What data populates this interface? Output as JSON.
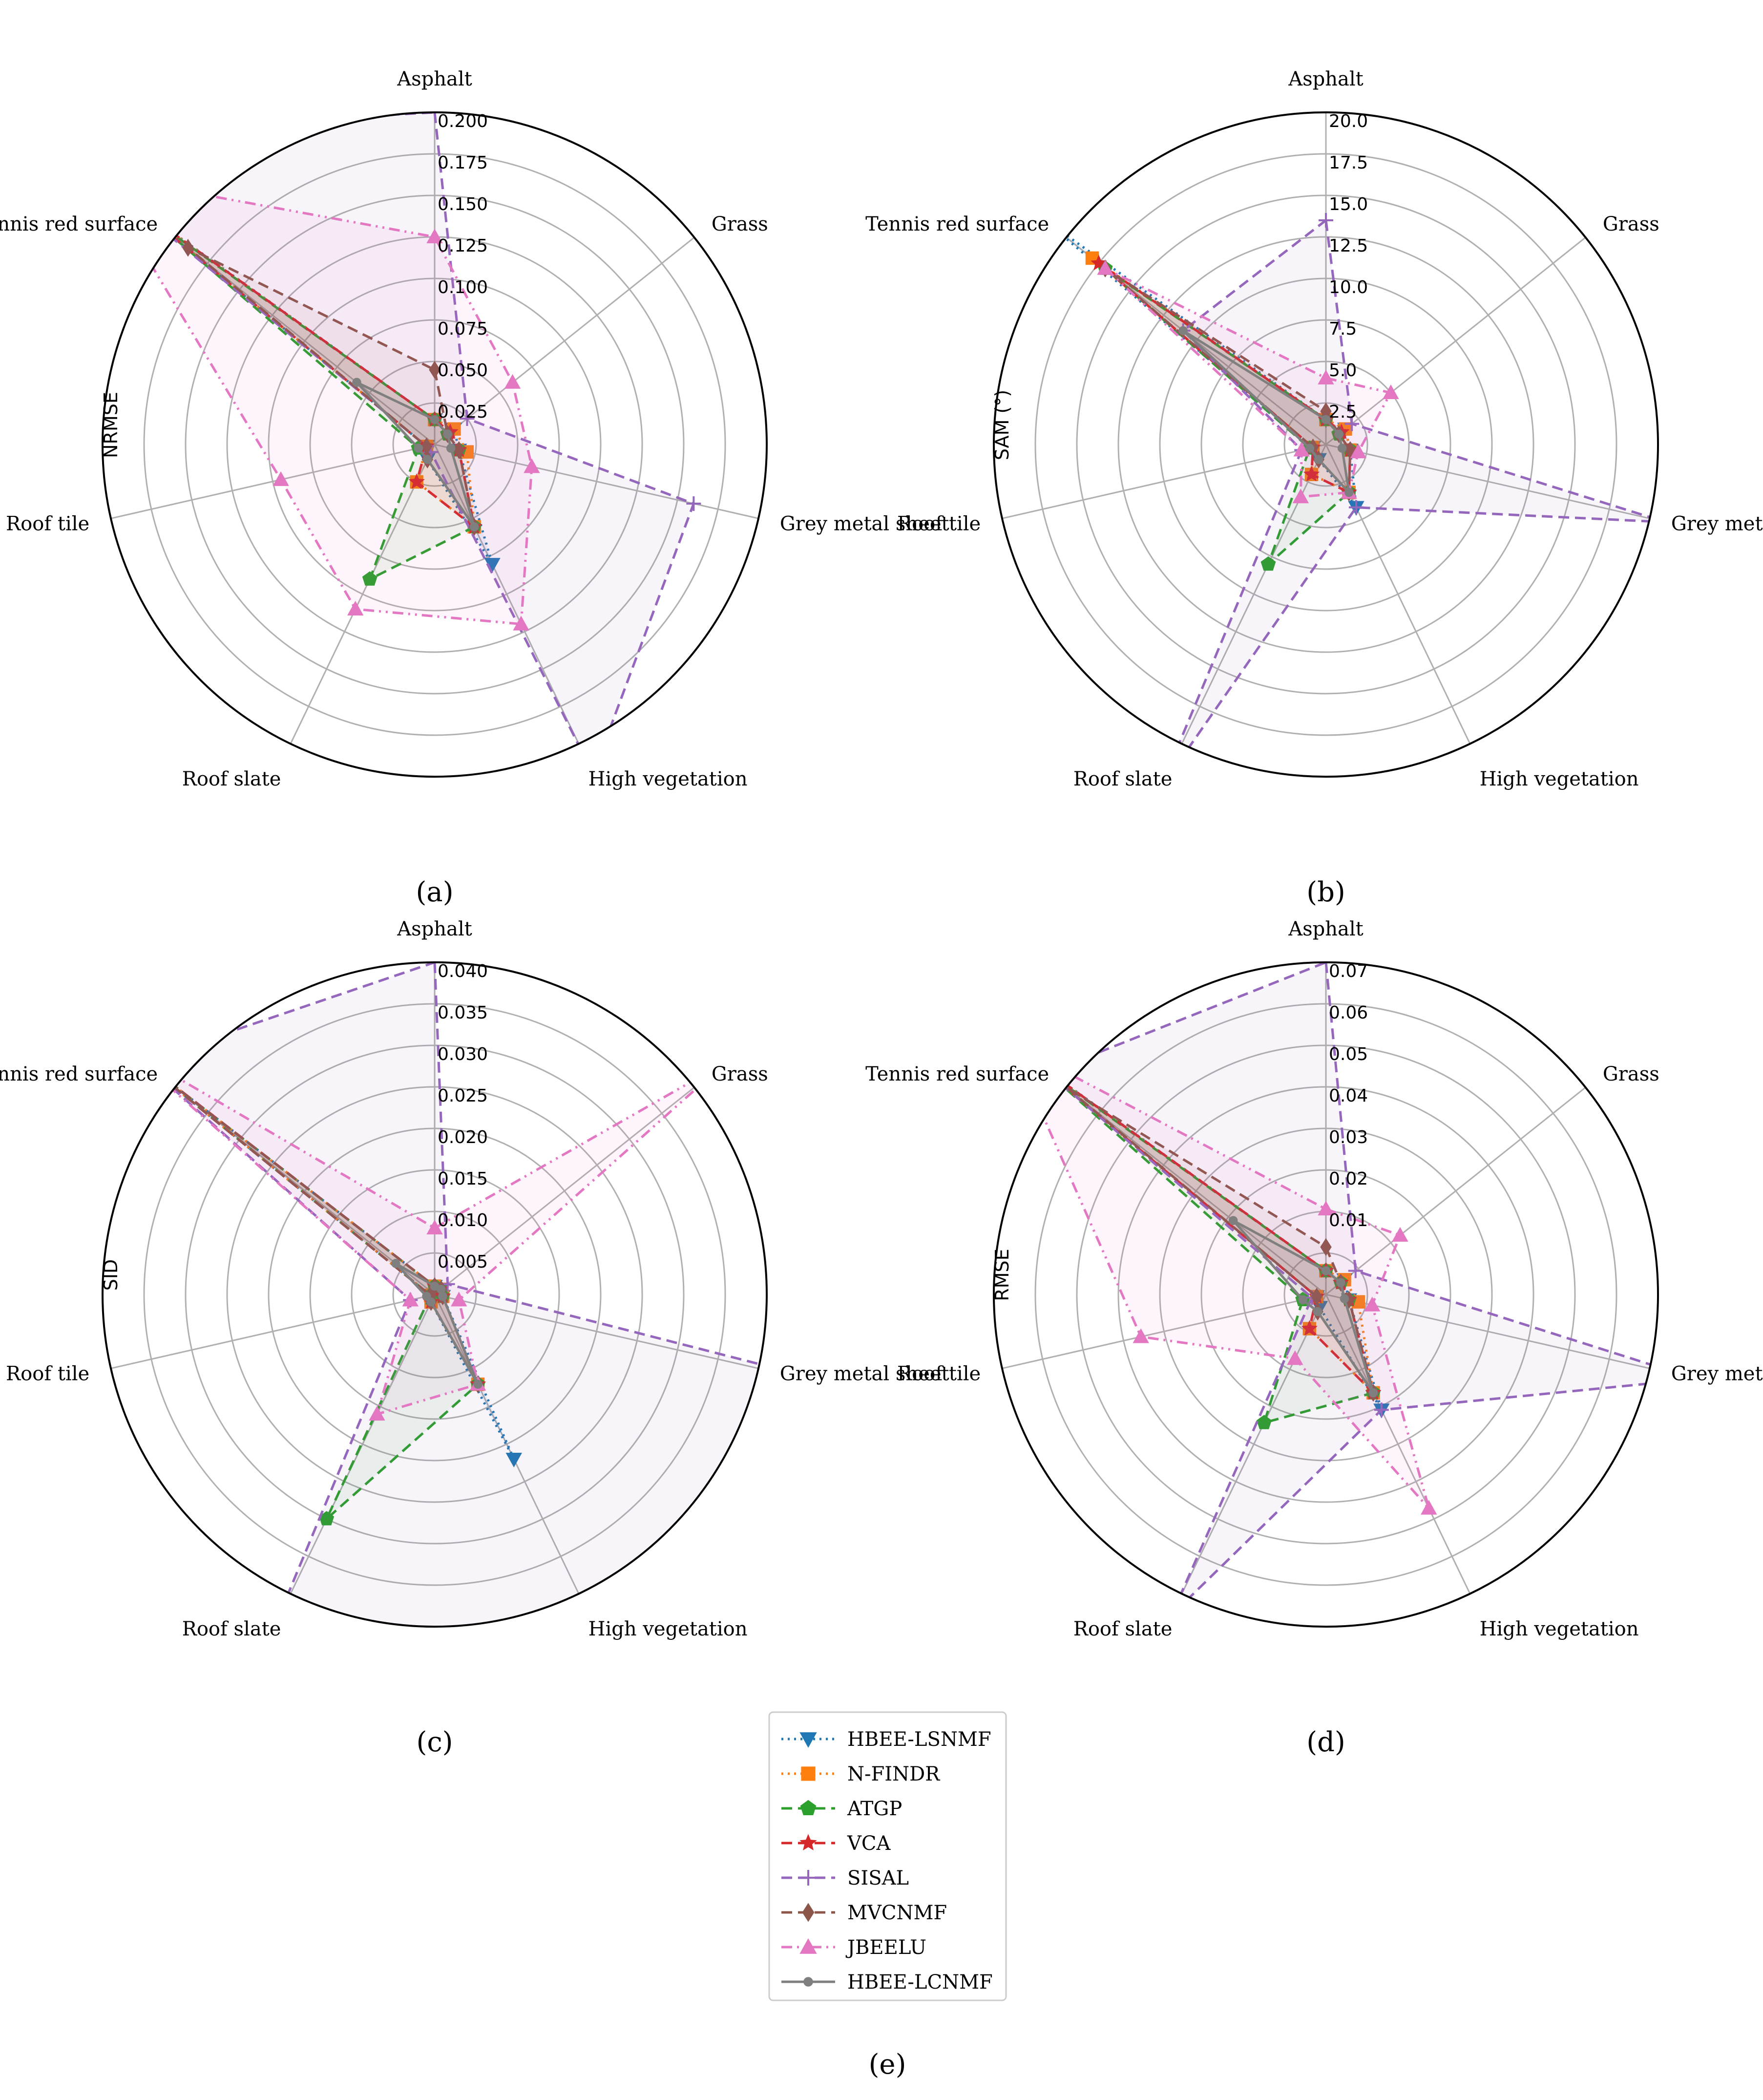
{
  "figure": {
    "legend": {
      "entries": [
        {
          "name": "HBEE-LSNMF",
          "color": "#1f77b4",
          "dash": "dotted",
          "marker": "triangle-down"
        },
        {
          "name": "N-FINDR",
          "color": "#ff7f0e",
          "dash": "dotted",
          "marker": "square"
        },
        {
          "name": "ATGP",
          "color": "#2ca02c",
          "dash": "dashed",
          "marker": "pentagon"
        },
        {
          "name": "VCA",
          "color": "#d62728",
          "dash": "dashed",
          "marker": "star"
        },
        {
          "name": "SISAL",
          "color": "#9467bd",
          "dash": "dashed",
          "marker": "plus"
        },
        {
          "name": "MVCNMF",
          "color": "#8c564b",
          "dash": "dashed",
          "marker": "diamond"
        },
        {
          "name": "JBEELU",
          "color": "#e377c2",
          "dash": "dashdot",
          "marker": "triangle-up"
        },
        {
          "name": "HBEE-LCNMF",
          "color": "#7f7f7f",
          "dash": "solid",
          "marker": "circle"
        }
      ],
      "caption": "(e)"
    }
  },
  "chart_data": [
    {
      "type": "radar",
      "caption": "(a)",
      "ylabel": "NRMSE",
      "categories": [
        "Asphalt",
        "Grass",
        "Grey metal sheet",
        "High vegetation",
        "Roof slate",
        "Roof tile",
        "Tennis red surface"
      ],
      "ylim": [
        0,
        0.2
      ],
      "ticks": [
        "0.025",
        "0.050",
        "0.075",
        "0.100",
        "0.125",
        "0.150",
        "0.175",
        "0.200"
      ],
      "series": [
        {
          "name": "HBEE-LSNMF",
          "values": [
            0.015,
            0.015,
            0.015,
            0.08,
            0.01,
            0.005,
            0.23
          ]
        },
        {
          "name": "N-FINDR",
          "values": [
            0.015,
            0.015,
            0.02,
            0.055,
            0.025,
            0.005,
            0.225
          ]
        },
        {
          "name": "ATGP",
          "values": [
            0.015,
            0.01,
            0.015,
            0.055,
            0.09,
            0.01,
            0.215
          ]
        },
        {
          "name": "VCA",
          "values": [
            0.015,
            0.012,
            0.015,
            0.055,
            0.025,
            0.005,
            0.225
          ]
        },
        {
          "name": "SISAL",
          "values": [
            0.2,
            0.025,
            0.16,
            0.22,
            0.005,
            0.005,
            0.3
          ]
        },
        {
          "name": "MVCNMF",
          "values": [
            0.045,
            0.01,
            0.015,
            0.055,
            0.01,
            0.005,
            0.19
          ]
        },
        {
          "name": "JBEELU",
          "values": [
            0.125,
            0.06,
            0.06,
            0.12,
            0.11,
            0.095,
            0.26
          ]
        },
        {
          "name": "HBEE-LCNMF",
          "values": [
            0.015,
            0.01,
            0.01,
            0.055,
            0.01,
            0.01,
            0.06
          ]
        }
      ]
    },
    {
      "type": "radar",
      "caption": "(b)",
      "ylabel": "SAM (°)",
      "categories": [
        "Asphalt",
        "Grass",
        "Grey metal sheet",
        "High vegetation",
        "Roof slate",
        "Roof tile",
        "Tennis red surface"
      ],
      "ylim": [
        0,
        20
      ],
      "ticks": [
        "2.5",
        "5.0",
        "7.5",
        "10.0",
        "12.5",
        "15.0",
        "17.5",
        "20.0"
      ],
      "series": [
        {
          "name": "HBEE-LSNMF",
          "values": [
            1.5,
            1.5,
            1.5,
            4.2,
            1.0,
            0.8,
            22.0
          ]
        },
        {
          "name": "N-FINDR",
          "values": [
            1.5,
            1.5,
            1.5,
            3.2,
            2.0,
            0.8,
            18.0
          ]
        },
        {
          "name": "ATGP",
          "values": [
            1.5,
            1.0,
            1.5,
            3.2,
            8.0,
            1.0,
            17.0
          ]
        },
        {
          "name": "VCA",
          "values": [
            1.5,
            1.2,
            1.5,
            3.2,
            2.0,
            0.8,
            17.5
          ]
        },
        {
          "name": "SISAL",
          "values": [
            13.5,
            2.0,
            21.0,
            4.2,
            23.0,
            1.5,
            11.0
          ]
        },
        {
          "name": "MVCNMF",
          "values": [
            2.0,
            1.0,
            1.5,
            3.2,
            1.0,
            0.8,
            17.0
          ]
        },
        {
          "name": "JBEELU",
          "values": [
            4.0,
            5.0,
            2.0,
            3.2,
            3.5,
            1.5,
            17.0
          ]
        },
        {
          "name": "HBEE-LCNMF",
          "values": [
            1.5,
            1.0,
            1.0,
            3.2,
            1.0,
            1.0,
            11.0
          ]
        }
      ]
    },
    {
      "type": "radar",
      "caption": "(c)",
      "ylabel": "SID",
      "categories": [
        "Asphalt",
        "Grass",
        "Grey metal sheet",
        "High vegetation",
        "Roof slate",
        "Roof tile",
        "Tennis red surface"
      ],
      "ylim": [
        0,
        0.04
      ],
      "ticks": [
        "0.005",
        "0.010",
        "0.015",
        "0.020",
        "0.025",
        "0.030",
        "0.035",
        "0.040"
      ],
      "series": [
        {
          "name": "HBEE-LSNMF",
          "values": [
            0.001,
            0.001,
            0.001,
            0.022,
            0.001,
            0.0005,
            0.046
          ]
        },
        {
          "name": "N-FINDR",
          "values": [
            0.001,
            0.001,
            0.001,
            0.012,
            0.001,
            0.0005,
            0.045
          ]
        },
        {
          "name": "ATGP",
          "values": [
            0.001,
            0.001,
            0.001,
            0.012,
            0.03,
            0.0005,
            0.045
          ]
        },
        {
          "name": "VCA",
          "values": [
            0.001,
            0.001,
            0.001,
            0.012,
            0.001,
            0.0005,
            0.046
          ]
        },
        {
          "name": "SISAL",
          "values": [
            0.04,
            0.002,
            0.06,
            0.05,
            0.045,
            0.003,
            0.045
          ]
        },
        {
          "name": "MVCNMF",
          "values": [
            0.001,
            0.001,
            0.001,
            0.012,
            0.001,
            0.0005,
            0.044
          ]
        },
        {
          "name": "JBEELU",
          "values": [
            0.008,
            0.045,
            0.003,
            0.012,
            0.016,
            0.003,
            0.048
          ]
        },
        {
          "name": "HBEE-LCNMF",
          "values": [
            0.001,
            0.001,
            0.001,
            0.012,
            0.001,
            0.001,
            0.006
          ]
        }
      ]
    },
    {
      "type": "radar",
      "caption": "(d)",
      "ylabel": "RMSE",
      "categories": [
        "Asphalt",
        "Grass",
        "Grey metal sheet",
        "High vegetation",
        "Roof slate",
        "Roof tile",
        "Tennis red surface"
      ],
      "ylim": [
        0,
        0.07
      ],
      "ticks": [
        "0.01",
        "0.02",
        "0.03",
        "0.04",
        "0.05",
        "0.06",
        "0.07"
      ],
      "series": [
        {
          "name": "HBEE-LSNMF",
          "values": [
            0.005,
            0.005,
            0.005,
            0.027,
            0.003,
            0.002,
            0.08
          ]
        },
        {
          "name": "N-FINDR",
          "values": [
            0.005,
            0.005,
            0.007,
            0.023,
            0.008,
            0.002,
            0.078
          ]
        },
        {
          "name": "ATGP",
          "values": [
            0.005,
            0.004,
            0.005,
            0.023,
            0.03,
            0.005,
            0.075
          ]
        },
        {
          "name": "VCA",
          "values": [
            0.005,
            0.004,
            0.005,
            0.023,
            0.008,
            0.002,
            0.079
          ]
        },
        {
          "name": "SISAL",
          "values": [
            0.07,
            0.008,
            0.08,
            0.027,
            0.075,
            0.003,
            0.075
          ]
        },
        {
          "name": "MVCNMF",
          "values": [
            0.01,
            0.004,
            0.005,
            0.023,
            0.004,
            0.002,
            0.07
          ]
        },
        {
          "name": "JBEELU",
          "values": [
            0.018,
            0.02,
            0.01,
            0.05,
            0.015,
            0.04,
            0.085
          ]
        },
        {
          "name": "HBEE-LCNMF",
          "values": [
            0.005,
            0.004,
            0.004,
            0.023,
            0.004,
            0.005,
            0.025
          ]
        }
      ]
    }
  ]
}
